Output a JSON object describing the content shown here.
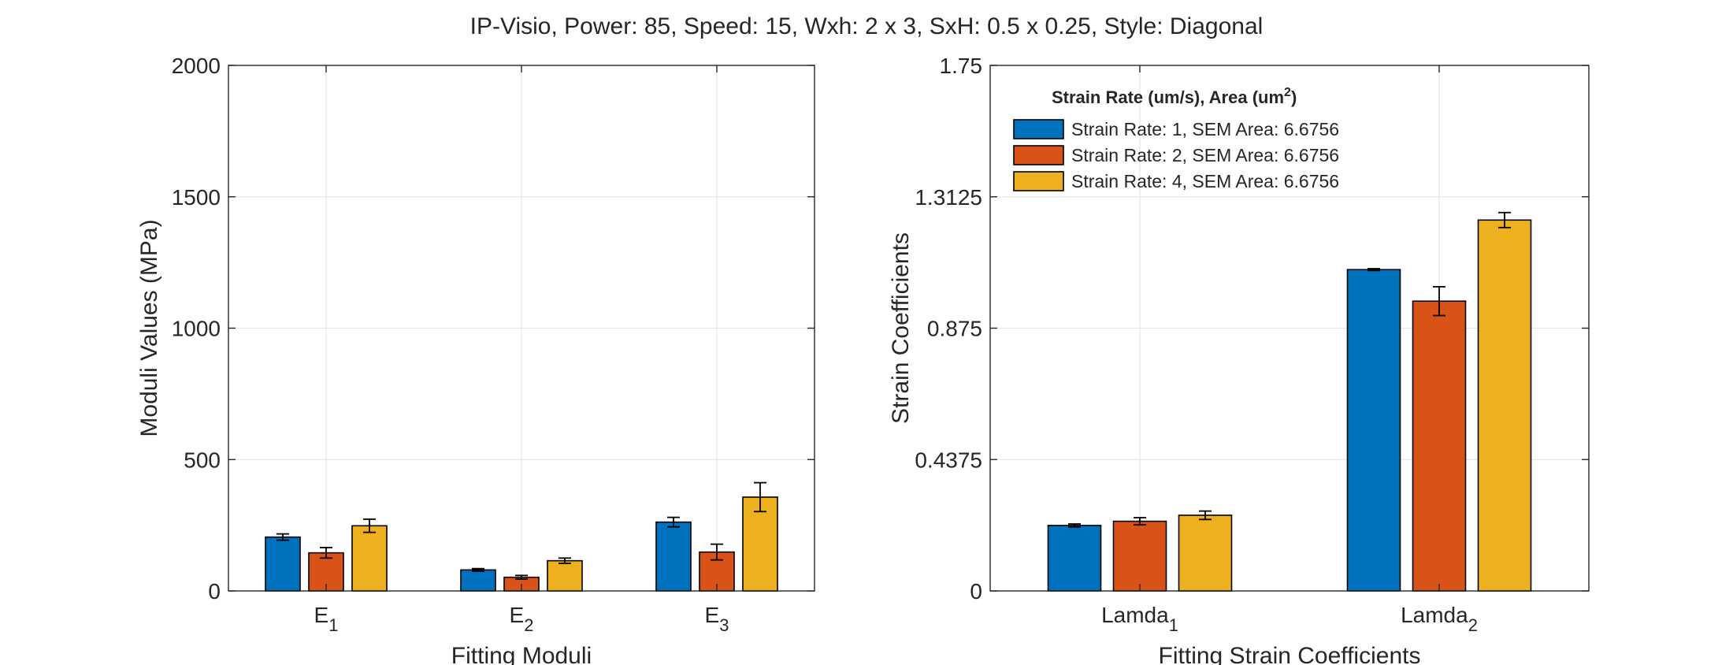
{
  "figure_title": "IP-Visio, Power: 85, Speed: 15, Wxh: 2 x 3, SxH: 0.5 x 0.25, Style: Diagonal",
  "colors": {
    "series": [
      "#0072BD",
      "#D95319",
      "#EDB120"
    ],
    "axis": "#262626",
    "grid": "#e6e6e6"
  },
  "chart_data": [
    {
      "type": "bar",
      "xlabel": "Fitting Moduli",
      "ylabel": "Moduli Values (MPa)",
      "categories": [
        {
          "base": "E",
          "sub": "1"
        },
        {
          "base": "E",
          "sub": "2"
        },
        {
          "base": "E",
          "sub": "3"
        }
      ],
      "ylim": [
        0,
        2000
      ],
      "yticks": [
        0,
        500,
        1000,
        1500,
        2000
      ],
      "ytick_labels": [
        "0",
        "500",
        "1000",
        "1500",
        "2000"
      ],
      "grid": true,
      "series": [
        {
          "values": [
            205,
            80,
            262
          ],
          "errors": [
            12,
            5,
            18
          ]
        },
        {
          "values": [
            145,
            52,
            148
          ],
          "errors": [
            20,
            7,
            30
          ]
        },
        {
          "values": [
            248,
            115,
            357
          ],
          "errors": [
            25,
            10,
            55
          ]
        }
      ]
    },
    {
      "type": "bar",
      "xlabel": "Fitting Strain Coefficients",
      "ylabel": "Strain Coefficients",
      "categories": [
        {
          "base": "Lamda",
          "sub": "1"
        },
        {
          "base": "Lamda",
          "sub": "2"
        }
      ],
      "ylim": [
        0,
        1.75
      ],
      "yticks": [
        0,
        0.4375,
        0.875,
        1.3125,
        1.75
      ],
      "ytick_labels": [
        "0",
        "0.4375",
        "0.875",
        "1.3125",
        "1.75"
      ],
      "grid": true,
      "legend": {
        "title": "Strain Rate (um/s), Area (um",
        "title_sup": "2",
        "title_close": ")",
        "placement": "top-left",
        "entries": [
          "Strain Rate: 1, SEM Area: 6.6756",
          "Strain Rate: 2, SEM Area: 6.6756",
          "Strain Rate: 4, SEM Area: 6.6756"
        ]
      },
      "series": [
        {
          "values": [
            0.218,
            1.07
          ],
          "errors": [
            0.005,
            0.003
          ]
        },
        {
          "values": [
            0.232,
            0.965
          ],
          "errors": [
            0.012,
            0.048
          ]
        },
        {
          "values": [
            0.252,
            1.235
          ],
          "errors": [
            0.014,
            0.025
          ]
        }
      ]
    }
  ]
}
